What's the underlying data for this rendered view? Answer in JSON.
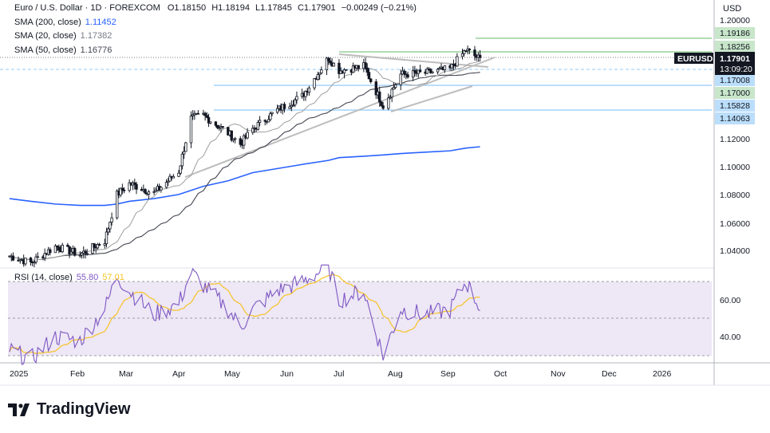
{
  "header": {
    "title": "Euro / U.S. Dollar · 1D · FOREXCOM",
    "o_label": "O",
    "o": "1.18150",
    "h_label": "H",
    "h": "1.18194",
    "l_label": "L",
    "l": "1.17845",
    "c_label": "C",
    "c": "1.17901",
    "chg": "−0.00249 (−0.21%)",
    "currency": "USD"
  },
  "indicators": {
    "sma200": {
      "label": "SMA (200, close)",
      "value": "1.11452",
      "color": "#2962ff"
    },
    "sma20": {
      "label": "SMA (20, close)",
      "value": "1.17382",
      "color": "#9e9e9e"
    },
    "sma50": {
      "label": "SMA (50, close)",
      "value": "1.16776",
      "color": "#434651"
    },
    "rsi": {
      "label": "RSI (14, close)",
      "value": "55.80",
      "ma_value": "57.01",
      "color": "#7e57c2",
      "ma_color": "#f7c325"
    }
  },
  "price_axis": {
    "ticks": [
      "1.20000",
      "1.12000",
      "1.10000",
      "1.08000",
      "1.06000",
      "1.04000"
    ],
    "levels": [
      {
        "value": 1.19186,
        "text": "1.19186",
        "bg": "#c8e6c9"
      },
      {
        "value": 1.18256,
        "text": "1.18256",
        "bg": "#c8e6c9"
      },
      {
        "value": 1.17008,
        "text": "1.17008",
        "bg": "#bbdefb"
      },
      {
        "value": 1.17,
        "text": "1.17000",
        "bg": "#c8e6c9"
      },
      {
        "value": 1.15828,
        "text": "1.15828",
        "bg": "#bbdefb"
      },
      {
        "value": 1.14063,
        "text": "1.14063",
        "bg": "#bbdefb"
      }
    ],
    "symbol": "EURUSD",
    "last_price": "1.17901",
    "countdown": "13:09:20"
  },
  "rsi_axis": {
    "ticks": [
      "60.00",
      "40.00"
    ]
  },
  "time_axis": [
    "2025",
    "Feb",
    "Mar",
    "Apr",
    "May",
    "Jun",
    "Jul",
    "Aug",
    "Sep",
    "Oct",
    "Nov",
    "Dec",
    "2026"
  ],
  "brand": "TradingView",
  "chart_data": {
    "type": "candlestick",
    "symbol": "EURUSD",
    "timeframe": "1D",
    "ylim": [
      1.025,
      1.205
    ],
    "rsi_ylim": [
      20,
      80
    ],
    "x": [
      "2025-01-01",
      "2025-01-13",
      "2025-01-27",
      "2025-02-10",
      "2025-02-24",
      "2025-03-03",
      "2025-03-10",
      "2025-03-24",
      "2025-04-07",
      "2025-04-14",
      "2025-04-21",
      "2025-05-05",
      "2025-05-12",
      "2025-05-19",
      "2025-06-02",
      "2025-06-16",
      "2025-07-01",
      "2025-07-07",
      "2025-07-21",
      "2025-08-01",
      "2025-08-11",
      "2025-08-25",
      "2025-09-08",
      "2025-09-17",
      "2025-09-25"
    ],
    "close": [
      1.035,
      1.03,
      1.042,
      1.036,
      1.046,
      1.08,
      1.088,
      1.081,
      1.097,
      1.136,
      1.138,
      1.125,
      1.117,
      1.128,
      1.142,
      1.152,
      1.18,
      1.171,
      1.174,
      1.145,
      1.168,
      1.169,
      1.172,
      1.186,
      1.179
    ],
    "sma200": [
      1.077,
      1.075,
      1.073,
      1.072,
      1.072,
      1.073,
      1.075,
      1.077,
      1.08,
      1.083,
      1.086,
      1.09,
      1.093,
      1.096,
      1.099,
      1.102,
      1.105,
      1.107,
      1.108,
      1.109,
      1.11,
      1.111,
      1.112,
      1.114,
      1.115
    ],
    "rsi": [
      33,
      28,
      40,
      38,
      55,
      73,
      65,
      52,
      58,
      75,
      68,
      55,
      45,
      55,
      65,
      70,
      78,
      60,
      65,
      30,
      55,
      52,
      55,
      70,
      56
    ],
    "trendlines": [
      {
        "from": [
          "2025-04-10",
          1.102
        ],
        "to": [
          "2025-09-25",
          1.176
        ]
      },
      {
        "from": [
          "2025-07-01",
          1.183
        ],
        "to": [
          "2025-09-20",
          1.176
        ]
      },
      {
        "from": [
          "2025-07-31",
          1.145
        ],
        "to": [
          "2025-09-10",
          1.17
        ]
      }
    ]
  }
}
